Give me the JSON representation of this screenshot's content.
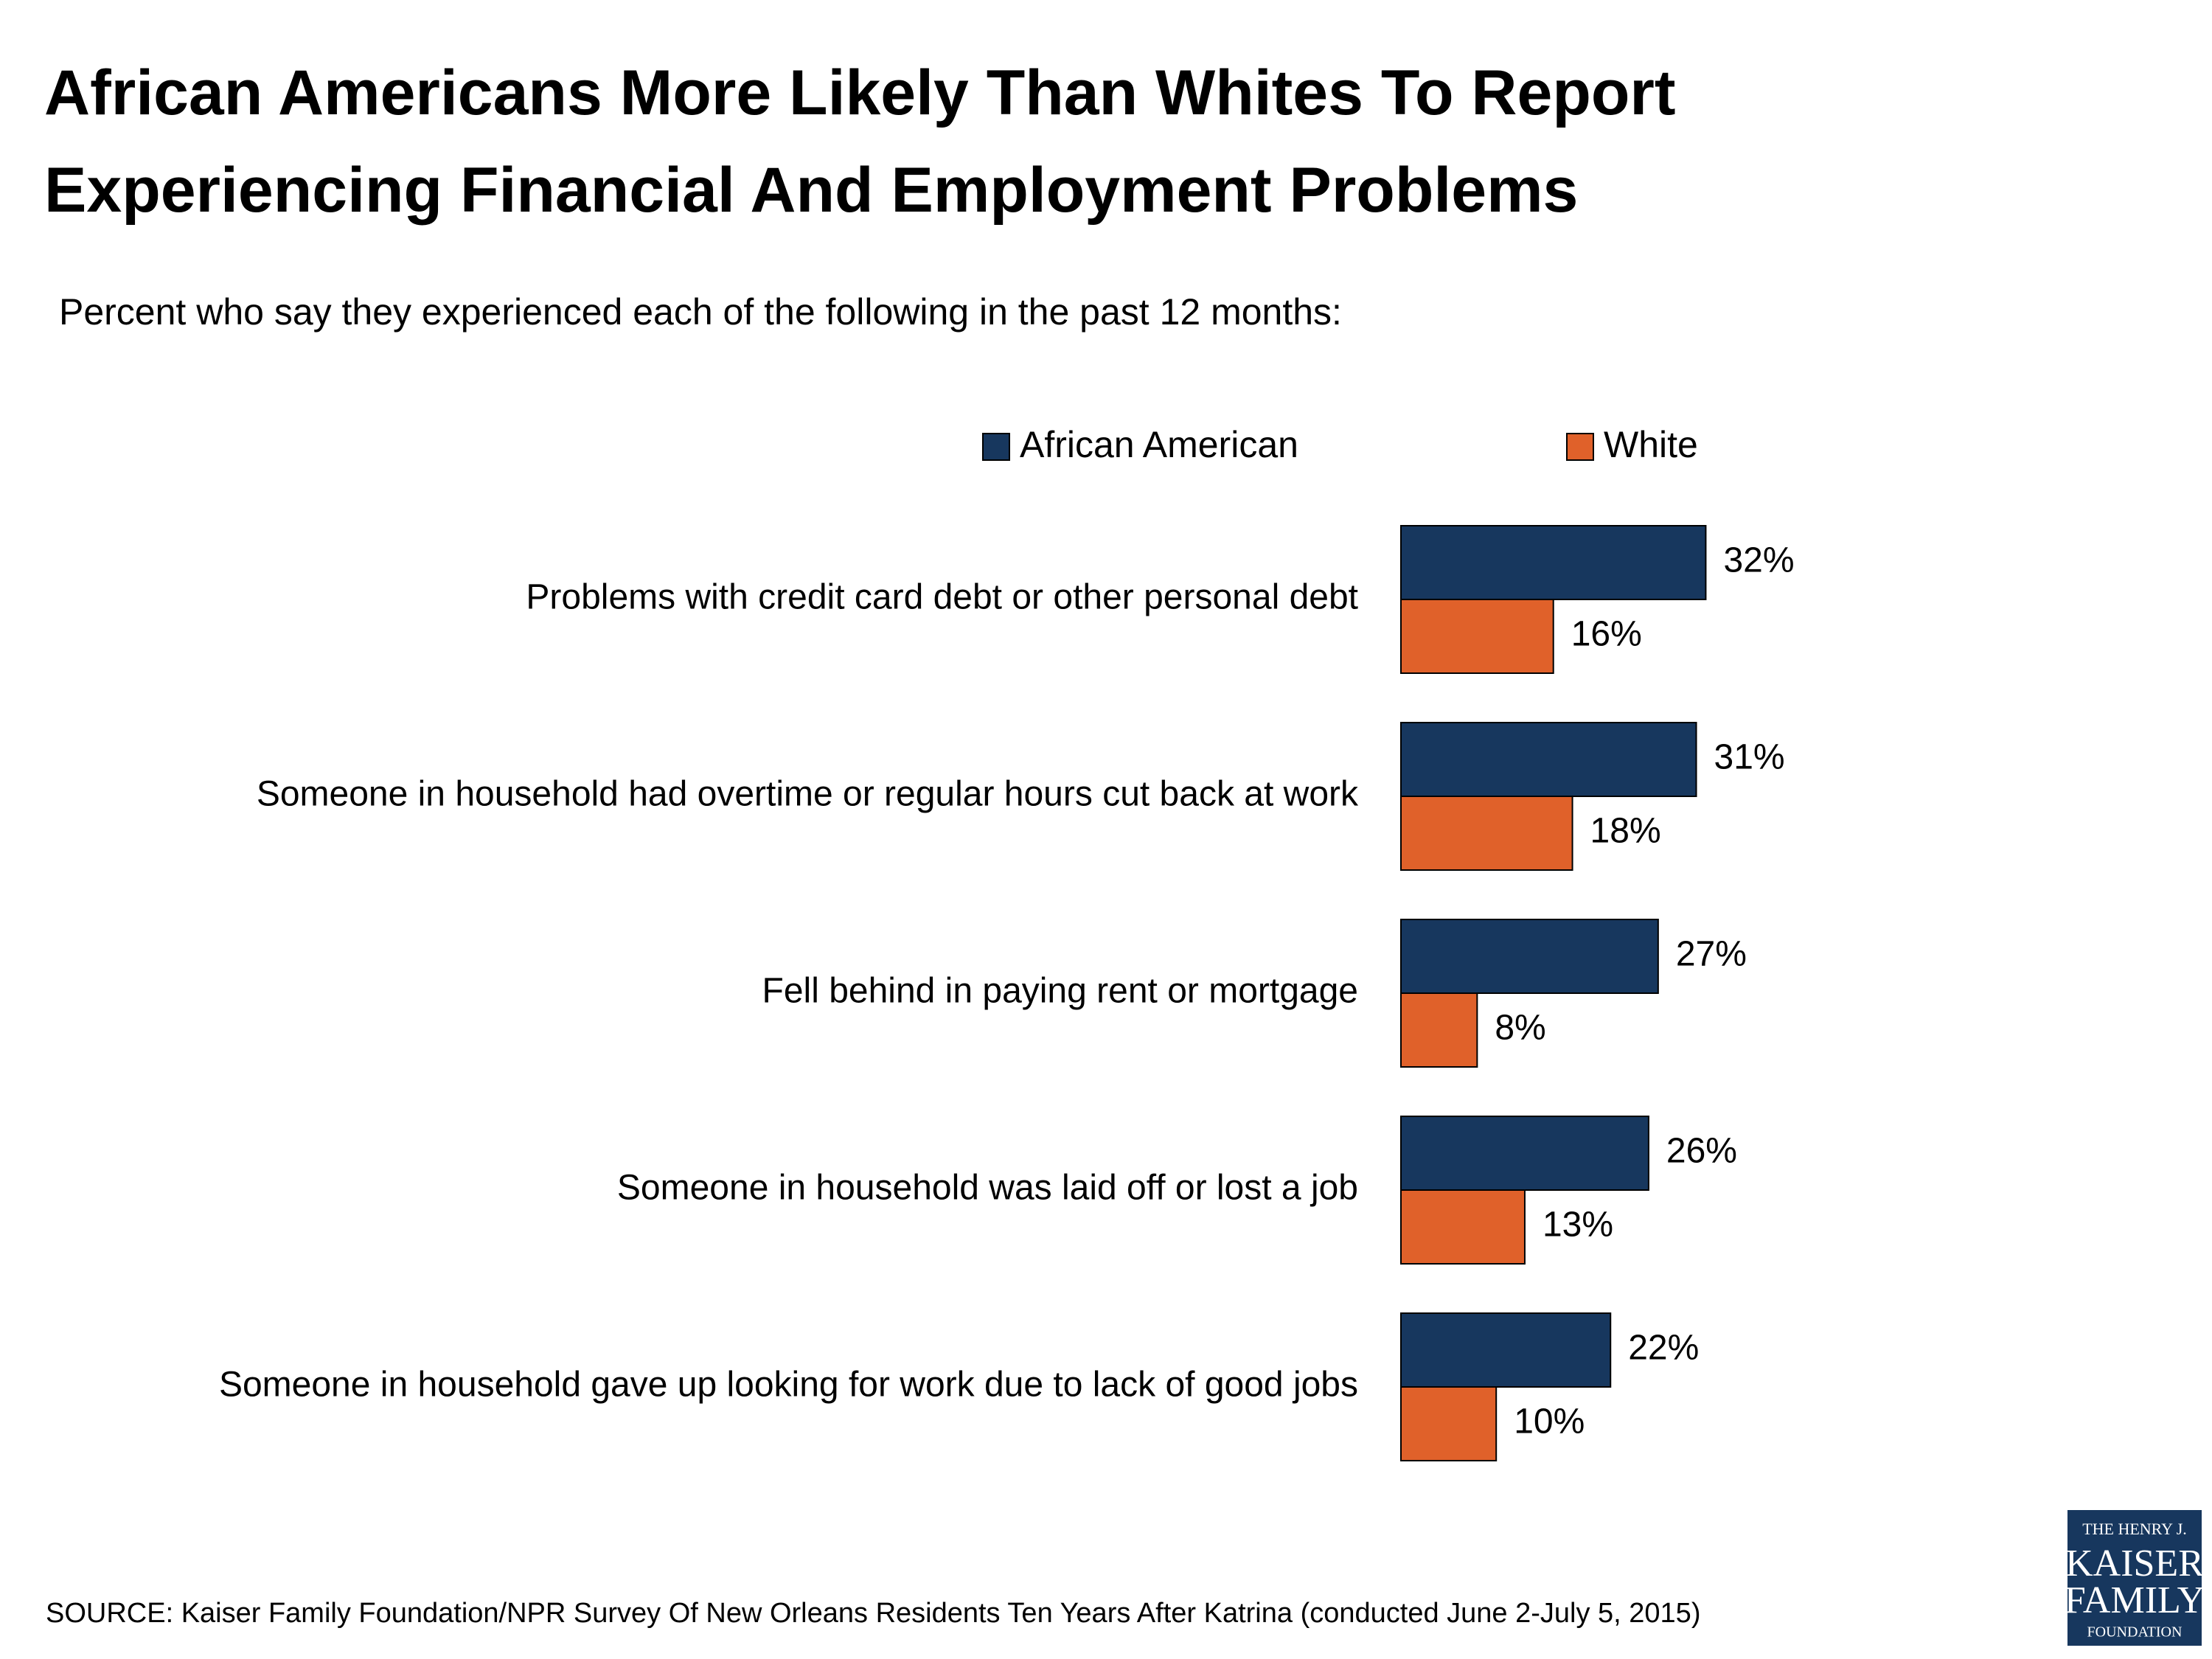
{
  "chart_data": {
    "type": "grouped-hbar",
    "title": "African Americans More Likely Than Whites To Report Experiencing Financial And Employment Problems",
    "subtitle": "Percent who say they experienced each of the following in the past 12 months:",
    "categories": [
      "Problems with credit card debt or other personal debt",
      "Someone in household had overtime or regular hours cut back at work",
      "Fell behind in paying rent or mortgage",
      "Someone in household was laid off or lost a job",
      "Someone in household gave up looking for work due to lack of good jobs"
    ],
    "series": [
      {
        "name": "African American",
        "color": "#17375e",
        "values": [
          32,
          31,
          27,
          26,
          22
        ],
        "value_labels": [
          "32%",
          "31%",
          "27%",
          "26%",
          "22%"
        ]
      },
      {
        "name": "White",
        "color": "#e0612a",
        "values": [
          16,
          18,
          8,
          13,
          10
        ],
        "value_labels": [
          "16%",
          "18%",
          "8%",
          "13%",
          "10%"
        ]
      }
    ],
    "source": "SOURCE: Kaiser Family Foundation/NPR Survey Of New Orleans Residents Ten Years After Katrina (conducted June 2-July 5, 2015)",
    "logo": [
      "THE HENRY J.",
      "KAISER",
      "FAMILY",
      "FOUNDATION"
    ]
  }
}
